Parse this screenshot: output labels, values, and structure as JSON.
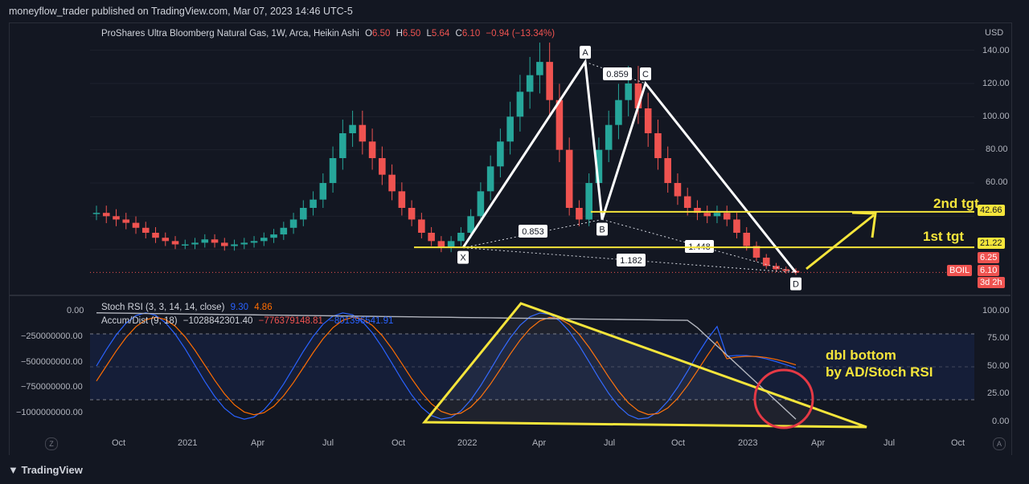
{
  "header": {
    "published": "moneyflow_trader published on TradingView.com, Mar 07, 2023 14:46 UTC-5"
  },
  "main_legend": {
    "symbol": "ProShares Ultra Bloomberg Natural Gas, 1W, Arca, Heikin Ashi",
    "o_label": "O",
    "o_value": "6.50",
    "h_label": "H",
    "h_value": "6.50",
    "l_label": "L",
    "l_value": "5.64",
    "c_label": "C",
    "c_value": "6.10",
    "change": "−0.94 (−13.34%)"
  },
  "indicator_legend": {
    "stoch_name": "Stoch RSI (3, 3, 14, 14, close)",
    "stoch_k": "9.30",
    "stoch_d": "4.86",
    "ad_name": "Accum/Dist (9, 18)",
    "ad_value1": "−1028842301.40",
    "ad_value2": "−776379148.81",
    "ad_value3": "−801396541.91"
  },
  "price_axis": {
    "currency": "USD",
    "ticks": [
      "140.00",
      "120.00",
      "100.00",
      "80.00",
      "60.00"
    ]
  },
  "price_tags": {
    "level1": "42.66",
    "level2": "21.22",
    "level3": "6.25",
    "last": "6.10",
    "countdown": "3d 2h",
    "symbol": "BOIL"
  },
  "rsi_axis": {
    "ticks": [
      "100.00",
      "75.00",
      "50.00",
      "25.00",
      "0.00"
    ]
  },
  "ad_axis": {
    "ticks": [
      "0.00",
      "−250000000.00",
      "−500000000.00",
      "−750000000.00",
      "−1000000000.00"
    ]
  },
  "time_axis": {
    "labels": [
      "Oct",
      "2021",
      "Apr",
      "Jul",
      "Oct",
      "2022",
      "Apr",
      "Jul",
      "Oct",
      "2023",
      "Apr",
      "Jul",
      "Oct"
    ]
  },
  "annotations": {
    "pt_x": "X",
    "pt_a": "A",
    "pt_b": "B",
    "pt_c": "C",
    "pt_d": "D",
    "ratio_ab": "0.853",
    "ratio_ac": "0.859",
    "ratio_cd": "1.448",
    "ratio_xd": "1.182",
    "tgt1": "1st tgt",
    "tgt2": "2nd tgt",
    "dbl_line1": "dbl bottom",
    "dbl_line2": "by AD/Stoch RSI"
  },
  "footer": {
    "brand": "TradingView"
  },
  "colors": {
    "up": "#26a69a",
    "down": "#ef5350",
    "pattern": "#ffffff",
    "target": "#f5e53b",
    "stoch_k": "#2962ff",
    "stoch_d": "#ff6d00",
    "circle": "#e53945",
    "bg": "#131722"
  },
  "chart_data": {
    "type": "candlestick",
    "symbol": "BOIL",
    "interval": "1W",
    "ohlc_last": {
      "open": 6.5,
      "high": 6.5,
      "low": 5.64,
      "close": 6.1
    },
    "harmonic_points": [
      {
        "label": "X",
        "price": 21
      },
      {
        "label": "A",
        "price": 133
      },
      {
        "label": "B",
        "price": 38
      },
      {
        "label": "C",
        "price": 120
      },
      {
        "label": "D",
        "price": 6
      }
    ],
    "horizontal_levels": [
      42.66,
      21.22,
      6.25,
      6.1
    ],
    "price_close_path": [
      42,
      40,
      38,
      36,
      33,
      30,
      27,
      25,
      23,
      23,
      24,
      26,
      24,
      22,
      23,
      24,
      25,
      27,
      29,
      33,
      38,
      45,
      50,
      60,
      75,
      90,
      95,
      85,
      75,
      65,
      55,
      45,
      38,
      30,
      25,
      21,
      25,
      30,
      40,
      55,
      70,
      85,
      100,
      115,
      125,
      133,
      110,
      80,
      45,
      38,
      60,
      80,
      95,
      110,
      120,
      105,
      90,
      75,
      60,
      52,
      45,
      42,
      40,
      42,
      38,
      30,
      22,
      15,
      10,
      8,
      7,
      6
    ],
    "price_ylim": [
      0,
      150
    ]
  }
}
